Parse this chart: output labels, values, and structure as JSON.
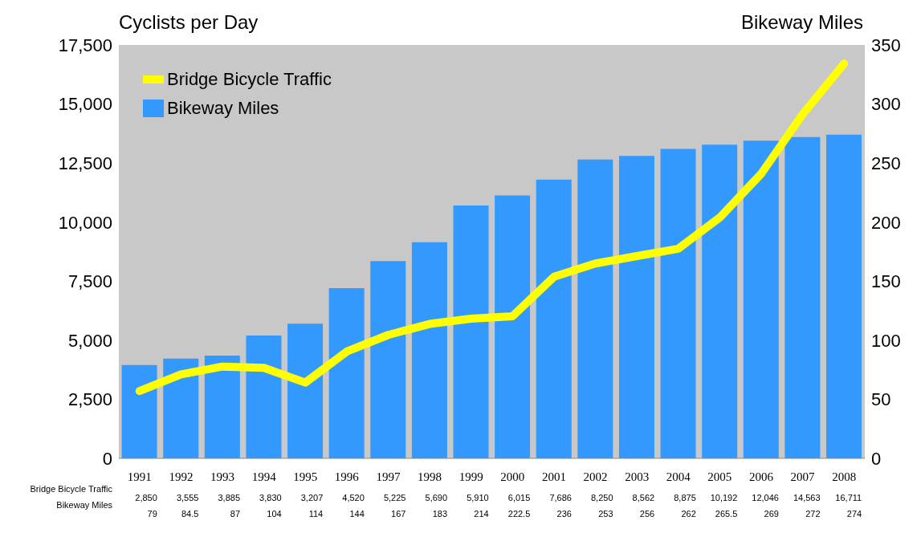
{
  "chart_data": {
    "type": "bar",
    "ylabel": "Cyclists per Day",
    "y2label": "Bikeway Miles",
    "categories": [
      "1991",
      "1992",
      "1993",
      "1994",
      "1995",
      "1996",
      "1997",
      "1998",
      "1999",
      "2000",
      "2001",
      "2002",
      "2003",
      "2004",
      "2005",
      "2006",
      "2007",
      "2008"
    ],
    "series": [
      {
        "name": "Bridge Bicycle Traffic",
        "type": "line",
        "color": "#ffff00",
        "values": [
          2850,
          3555,
          3885,
          3830,
          3207,
          4520,
          5225,
          5690,
          5910,
          6015,
          7686,
          8250,
          8562,
          8875,
          10192,
          12046,
          14563,
          16711
        ],
        "value_labels": [
          "2,850",
          "3,555",
          "3,885",
          "3,830",
          "3,207",
          "4,520",
          "5,225",
          "5,690",
          "5,910",
          "6,015",
          "7,686",
          "8,250",
          "8,562",
          "8,875",
          "10,192",
          "12,046",
          "14,563",
          "16,711"
        ]
      },
      {
        "name": "Bikeway Miles",
        "axis": "y2",
        "color": "#3399ff",
        "values": [
          79,
          84.5,
          87,
          104,
          114,
          144,
          167,
          183,
          214,
          222.5,
          236,
          253,
          256,
          262,
          265.5,
          269,
          272,
          274
        ],
        "value_labels": [
          "79",
          "84.5",
          "87",
          "104",
          "114",
          "144",
          "167",
          "183",
          "214",
          "222.5",
          "236",
          "253",
          "256",
          "262",
          "265.5",
          "269",
          "272",
          "274"
        ]
      }
    ],
    "ylim": [
      0,
      17500
    ],
    "yticks": [
      0,
      {
        "value": 2500,
        "label": "2,500"
      },
      {
        "value": 5000,
        "label": "5,000"
      },
      {
        "value": 7500,
        "label": "7,500"
      },
      {
        "value": 10000,
        "label": "10,000"
      },
      {
        "value": 12500,
        "label": "12,500"
      },
      {
        "value": 15000,
        "label": "15,000"
      },
      {
        "value": 17500,
        "label": "17,500"
      }
    ],
    "y2lim": [
      0,
      350
    ],
    "y2ticks": [
      0,
      50,
      100,
      150,
      200,
      250,
      300,
      350
    ],
    "legend": "top left"
  }
}
